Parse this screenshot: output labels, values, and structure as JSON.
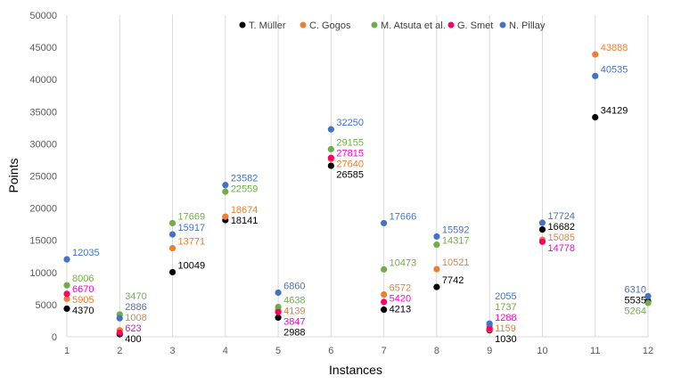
{
  "chart_data": {
    "type": "scatter",
    "xlabel": "Instances",
    "ylabel": "Points",
    "xlim": [
      1,
      12
    ],
    "ylim": [
      0,
      50000
    ],
    "x_ticks": [
      "1",
      "2",
      "3",
      "4",
      "5",
      "6",
      "7",
      "8",
      "9",
      "10",
      "11",
      "12"
    ],
    "y_ticks": [
      "0",
      "5000",
      "10000",
      "15000",
      "20000",
      "25000",
      "30000",
      "35000",
      "40000",
      "45000",
      "50000"
    ],
    "grid": "vertical",
    "legend_position": "top",
    "series": [
      {
        "name": "T. Müller",
        "color": "#000000",
        "label_color": "#000000",
        "points": [
          [
            1,
            4370
          ],
          [
            2,
            400
          ],
          [
            3,
            10049
          ],
          [
            4,
            18141
          ],
          [
            5,
            2988
          ],
          [
            6,
            26585
          ],
          [
            7,
            4213
          ],
          [
            8,
            7742
          ],
          [
            9,
            1030
          ],
          [
            10,
            16682
          ],
          [
            11,
            34129
          ],
          [
            12,
            5535
          ]
        ]
      },
      {
        "name": "C. Gogos",
        "color": "#ED7D31",
        "label_color": "#ED7D31",
        "points": [
          [
            1,
            5905
          ],
          [
            2,
            1008
          ],
          [
            3,
            13771
          ],
          [
            4,
            18674
          ],
          [
            5,
            4139
          ],
          [
            6,
            27640
          ],
          [
            7,
            6572
          ],
          [
            8,
            10521
          ],
          [
            9,
            1159
          ],
          [
            10,
            15085
          ],
          [
            11,
            43888
          ]
        ]
      },
      {
        "name": "M. Atsuta et al.",
        "color": "#70AD47",
        "label_color": "#70AD47",
        "points": [
          [
            1,
            8006
          ],
          [
            2,
            3470
          ],
          [
            3,
            17669
          ],
          [
            4,
            22559
          ],
          [
            5,
            4638
          ],
          [
            6,
            29155
          ],
          [
            7,
            10473
          ],
          [
            8,
            14317
          ],
          [
            9,
            1737
          ],
          [
            12,
            5264
          ]
        ]
      },
      {
        "name": "G. Smet",
        "color": "#FF0066",
        "label_color": "#FF00CC",
        "points": [
          [
            1,
            6670
          ],
          [
            2,
            623
          ],
          [
            5,
            3847
          ],
          [
            6,
            27815
          ],
          [
            7,
            5420
          ],
          [
            9,
            1288
          ],
          [
            10,
            14778
          ]
        ]
      },
      {
        "name": "N. Pillay",
        "color": "#4472C4",
        "label_color": "#4472C4",
        "points": [
          [
            1,
            12035
          ],
          [
            2,
            2886
          ],
          [
            3,
            15917
          ],
          [
            4,
            23582
          ],
          [
            5,
            6860
          ],
          [
            6,
            32250
          ],
          [
            7,
            17666
          ],
          [
            8,
            15592
          ],
          [
            9,
            2055
          ],
          [
            10,
            17724
          ],
          [
            11,
            40535
          ],
          [
            12,
            6310
          ]
        ]
      }
    ]
  }
}
